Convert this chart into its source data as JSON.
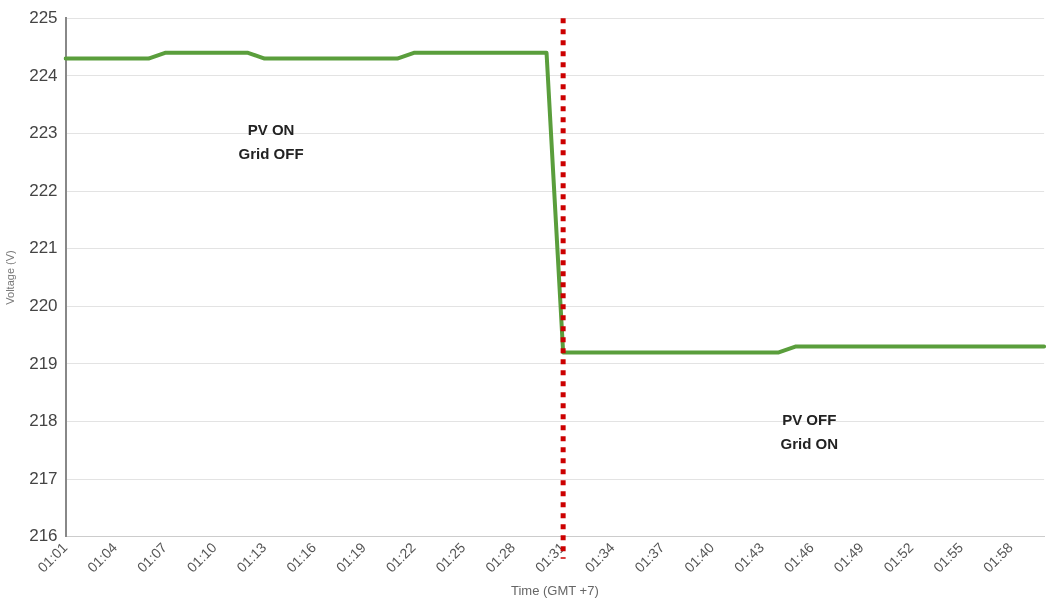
{
  "chart_data": {
    "type": "line",
    "xlabel": "Time (GMT +7)",
    "ylabel": "Voltage (V)",
    "categories": [
      "01:01",
      null,
      null,
      "01:04",
      null,
      null,
      "01:07",
      null,
      null,
      "01:10",
      null,
      null,
      "01:13",
      null,
      null,
      "01:16",
      null,
      null,
      "01:19",
      null,
      null,
      "01:22",
      null,
      null,
      "01:25",
      null,
      null,
      "01:28",
      null,
      null,
      "01:31",
      null,
      null,
      "01:34",
      null,
      null,
      "01:37",
      null,
      null,
      "01:40",
      null,
      null,
      "01:43",
      null,
      null,
      "01:46",
      null,
      null,
      "01:49",
      null,
      null,
      "01:52",
      null,
      null,
      "01:55",
      null,
      null,
      "01:58",
      null,
      null
    ],
    "series": [
      {
        "color": "#5a9e3c",
        "values": [
          224.3,
          224.3,
          224.3,
          224.3,
          224.3,
          224.3,
          224.4,
          224.4,
          224.4,
          224.4,
          224.4,
          224.4,
          224.3,
          224.3,
          224.3,
          224.3,
          224.3,
          224.3,
          224.3,
          224.3,
          224.3,
          224.4,
          224.4,
          224.4,
          224.4,
          224.4,
          224.4,
          224.4,
          224.4,
          224.4,
          219.2,
          219.2,
          219.2,
          219.2,
          219.2,
          219.2,
          219.2,
          219.2,
          219.2,
          219.2,
          219.2,
          219.2,
          219.2,
          219.2,
          219.3,
          219.3,
          219.3,
          219.3,
          219.3,
          219.3,
          219.3,
          219.3,
          219.3,
          219.3,
          219.3,
          219.3,
          219.3,
          219.3,
          219.3,
          219.3
        ]
      }
    ],
    "ylim": [
      216,
      225
    ],
    "yticks": [
      216,
      217,
      218,
      219,
      220,
      221,
      222,
      223,
      224,
      225
    ],
    "grid": "y",
    "legend": false,
    "marker": "none",
    "line_style": "solid",
    "ref_lines": [
      {
        "axis": "x",
        "value": "01:31",
        "color": "#cc0000",
        "line_style": "dotted"
      }
    ],
    "annotations": [
      "PV ON\nGrid OFF",
      "PV OFF\nGrid ON"
    ]
  }
}
